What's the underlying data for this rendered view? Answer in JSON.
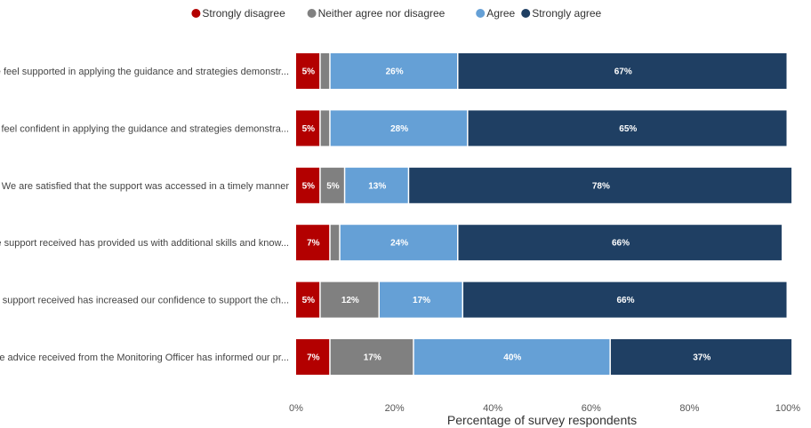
{
  "chart_data": {
    "type": "bar",
    "orientation": "horizontal",
    "stacked": true,
    "categories": [
      "We feel supported in applying the guidance and strategies demonstr...",
      "We feel confident in applying the guidance and strategies demonstra...",
      "We are satisfied that the support was accessed in a timely manner",
      "The support received has provided us with additional skills and know...",
      "The support received has increased our confidence to support the ch...",
      "The advice received from the Monitoring Officer has informed our pr..."
    ],
    "series": [
      {
        "name": "Strongly disagree",
        "color": "#b30000",
        "values": [
          5,
          5,
          5,
          7,
          5,
          7
        ],
        "labels": [
          "5%",
          "5%",
          "5%",
          "7%",
          "5%",
          "7%"
        ]
      },
      {
        "name": "Neither agree nor disagree",
        "color": "#808080",
        "values": [
          2,
          2,
          5,
          2,
          12,
          17
        ],
        "labels": [
          "",
          "",
          "5%",
          "",
          "12%",
          "17%"
        ]
      },
      {
        "name": "Agree",
        "color": "#65a0d6",
        "values": [
          26,
          28,
          13,
          24,
          17,
          40
        ],
        "labels": [
          "26%",
          "28%",
          "13%",
          "24%",
          "17%",
          "40%"
        ]
      },
      {
        "name": "Strongly agree",
        "color": "#1f3f63",
        "values": [
          67,
          65,
          78,
          66,
          66,
          37
        ],
        "labels": [
          "67%",
          "65%",
          "78%",
          "66%",
          "66%",
          "37%"
        ]
      }
    ],
    "xlabel": "Percentage of survey respondents",
    "ylabel": "",
    "xlim": [
      0,
      100
    ],
    "xticks": [
      "0%",
      "20%",
      "40%",
      "60%",
      "80%",
      "100%"
    ],
    "legend_position": "top-center",
    "grid": false
  }
}
